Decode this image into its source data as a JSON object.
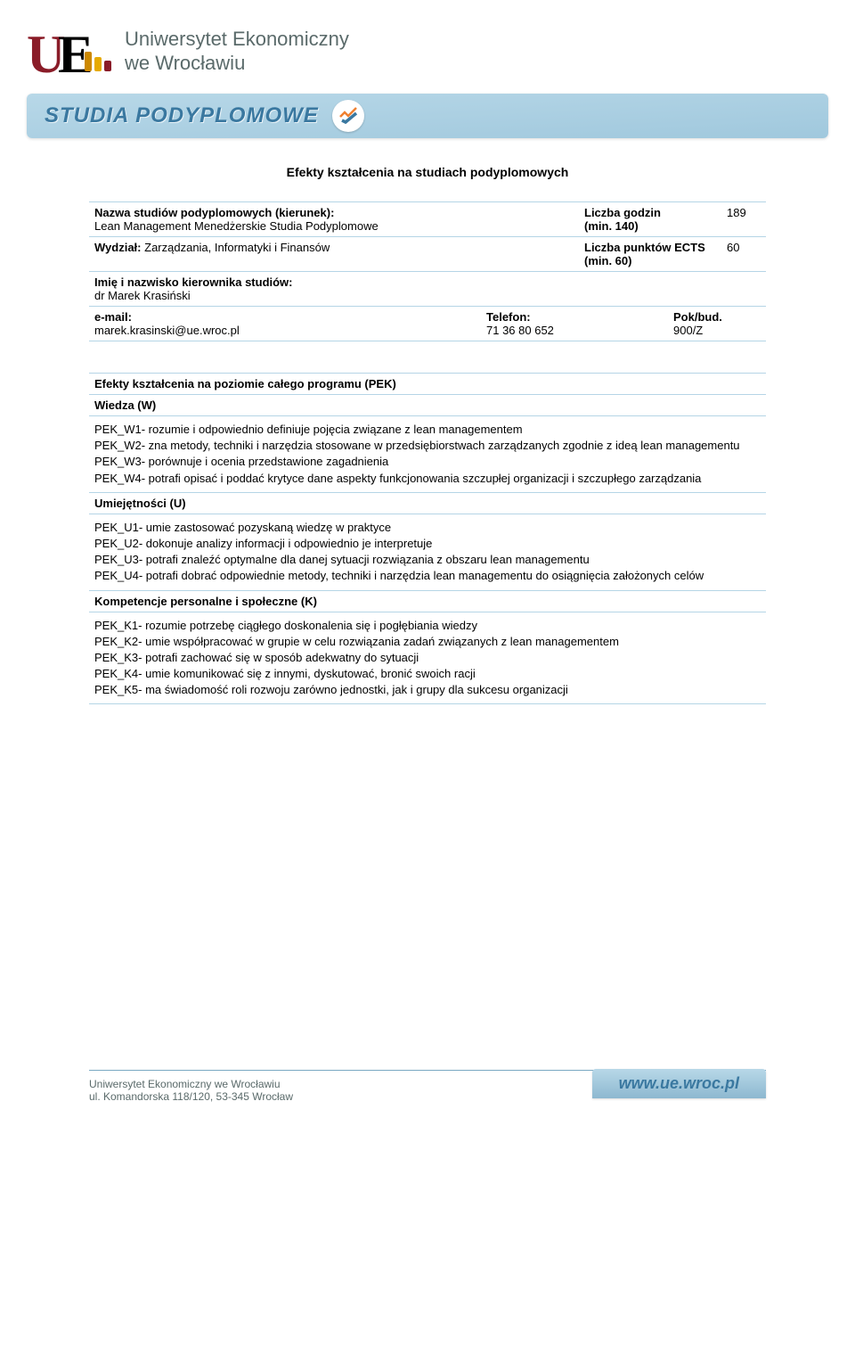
{
  "header": {
    "university_line1": "Uniwersytet Ekonomiczny",
    "university_line2": "we Wrocławiu",
    "banner_text": "STUDIA PODYPLOMOWE",
    "logo_bars": [
      {
        "color": "#cc8800",
        "height": 22
      },
      {
        "color": "#e6aa00",
        "height": 16
      },
      {
        "color": "#8a1c28",
        "height": 12
      }
    ]
  },
  "document": {
    "title": "Efekty kształcenia na studiach podyplomowych",
    "info": {
      "nazwa_label": "Nazwa studiów podyplomowych (kierunek):",
      "nazwa_value": "Lean Management Menedżerskie Studia Podyplomowe",
      "godzin_label": "Liczba godzin",
      "godzin_sub": "(min. 140)",
      "godzin_value": "189",
      "wydzial_label": "Wydział:",
      "wydzial_value": "Zarządzania, Informatyki i Finansów",
      "ects_label": "Liczba punktów ECTS",
      "ects_sub": "(min. 60)",
      "ects_value": "60",
      "kierownik_label": "Imię i nazwisko kierownika studiów:",
      "kierownik_value": "dr Marek Krasiński",
      "email_label": "e-mail:",
      "email_value": "marek.krasinski@ue.wroc.pl",
      "telefon_label": "Telefon:",
      "telefon_value": "71 36 80 652",
      "pok_label": "Pok/bud.",
      "pok_value": "900/Z"
    },
    "pek": {
      "heading": "Efekty kształcenia na poziomie całego programu (PEK)",
      "wiedza_label": "Wiedza (W)",
      "wiedza_items": [
        "PEK_W1- rozumie i odpowiednio definiuje pojęcia związane z lean managementem",
        "PEK_W2- zna metody, techniki i narzędzia stosowane w przedsiębiorstwach zarządzanych zgodnie z ideą lean managementu",
        "PEK_W3- porównuje i ocenia przedstawione zagadnienia",
        "PEK_W4- potrafi opisać i poddać krytyce dane aspekty funkcjonowania szczupłej organizacji i szczupłego zarządzania"
      ],
      "umiej_label": "Umiejętności  (U)",
      "umiej_items": [
        "PEK_U1- umie zastosować pozyskaną wiedzę w praktyce",
        "PEK_U2- dokonuje analizy informacji i odpowiednio je interpretuje",
        "PEK_U3- potrafi znaleźć  optymalne dla danej sytuacji rozwiązania z obszaru lean managementu",
        "PEK_U4- potrafi dobrać odpowiednie  metody, techniki i narzędzia lean managementu do osiągnięcia założonych celów"
      ],
      "komp_label": "Kompetencje personalne i społeczne (K)",
      "komp_items": [
        "PEK_K1- rozumie potrzebę ciągłego doskonalenia się i pogłębiania wiedzy",
        "PEK_K2- umie współpracować w grupie w celu rozwiązania zadań związanych z lean managementem",
        "PEK_K3- potrafi zachować się w sposób adekwatny do sytuacji",
        "PEK_K4- umie komunikować się z innymi, dyskutować, bronić swoich racji",
        "PEK_K5- ma świadomość roli rozwoju zarówno jednostki, jak i grupy dla sukcesu organizacji"
      ]
    }
  },
  "footer": {
    "line1": "Uniwersytet Ekonomiczny we Wrocławiu",
    "line2": "ul. Komandorska 118/120, 53-345 Wrocław",
    "url": "www.ue.wroc.pl"
  },
  "colors": {
    "border": "#b5d5e6",
    "logo_red": "#8a1c28",
    "banner_text": "#3a78a0",
    "footer_text": "#5a6a6a"
  }
}
